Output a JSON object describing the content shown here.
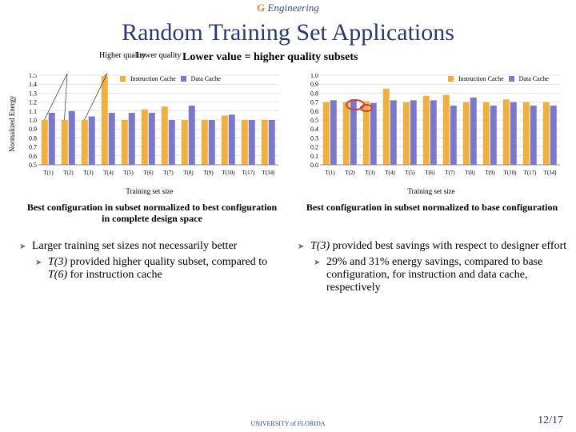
{
  "header_logo": "Engineering",
  "title": "Random Training Set Applications",
  "hq": "Higher\nquality",
  "lq": "Lower\nquality",
  "subtitle": "Lower value = higher quality subsets",
  "ylabel": "Normalized Energy",
  "colors": {
    "instr": "#f0b040",
    "data": "#7a78c8",
    "grid": "#cccccc",
    "axis": "#888888",
    "oval": "#d04040"
  },
  "legend_instr": "Instruction Cache",
  "legend_data": "Data Cache",
  "chart_left": {
    "ylim": [
      0.5,
      1.5
    ],
    "ytick_step": 0.1,
    "yticks": [
      "1.5",
      "1.4",
      "1.3",
      "1.2",
      "1.1",
      "1.0",
      "0.9",
      "0.8",
      "0.7",
      "0.6",
      "0.5"
    ],
    "categories": [
      "T(1)",
      "T(2)",
      "T(3)",
      "T(4)",
      "T(5)",
      "T(6)",
      "T(7)",
      "T(8)",
      "T(9)",
      "T(10)",
      "T(17)",
      "T(34)"
    ],
    "instr": [
      1.0,
      1.0,
      1.0,
      1.49,
      1.0,
      1.12,
      1.15,
      1.0,
      1.0,
      1.05,
      1.0,
      1.0
    ],
    "data": [
      1.08,
      1.1,
      1.04,
      1.08,
      1.08,
      1.08,
      1.0,
      1.16,
      1.0,
      1.06,
      1.0,
      1.0
    ]
  },
  "chart_right": {
    "ylim": [
      0.0,
      1.0
    ],
    "ytick_step": 0.1,
    "yticks": [
      "1.0",
      "0.9",
      "0.8",
      "0.7",
      "0.6",
      "0.5",
      "0.4",
      "0.3",
      "0.2",
      "0.1",
      "0.0"
    ],
    "categories": [
      "T(1)",
      "T(2)",
      "T(3)",
      "T(4)",
      "T(5)",
      "T(6)",
      "T(7)",
      "T(8)",
      "T(9)",
      "T(10)",
      "T(17)",
      "T(34)"
    ],
    "instr": [
      0.7,
      0.7,
      0.71,
      0.85,
      0.7,
      0.77,
      0.78,
      0.7,
      0.7,
      0.73,
      0.7,
      0.7
    ],
    "data": [
      0.72,
      0.73,
      0.69,
      0.72,
      0.72,
      0.72,
      0.66,
      0.75,
      0.66,
      0.7,
      0.66,
      0.66
    ]
  },
  "xlabel": "Training set size",
  "caption_left": "Best configuration in subset normalized to best configuration in complete design space",
  "caption_right": "Best configuration in subset normalized to base configuration",
  "bullets_left": {
    "b1": "Larger training set sizes not necessarily better",
    "b1a_pre": "T(3)",
    "b1a": " provided higher quality subset, compared to ",
    "b1a_mid": "T(6)",
    "b1a_post": " for instruction cache"
  },
  "bullets_right": {
    "b1_pre": "T(3)",
    "b1": " provided best savings with respect to designer effort",
    "b1a": "29% and 31% energy savings, compared to base configuration, for instruction and data cache, respectively"
  },
  "page": "12/17",
  "uf": "UNIVERSITY of FLORIDA"
}
